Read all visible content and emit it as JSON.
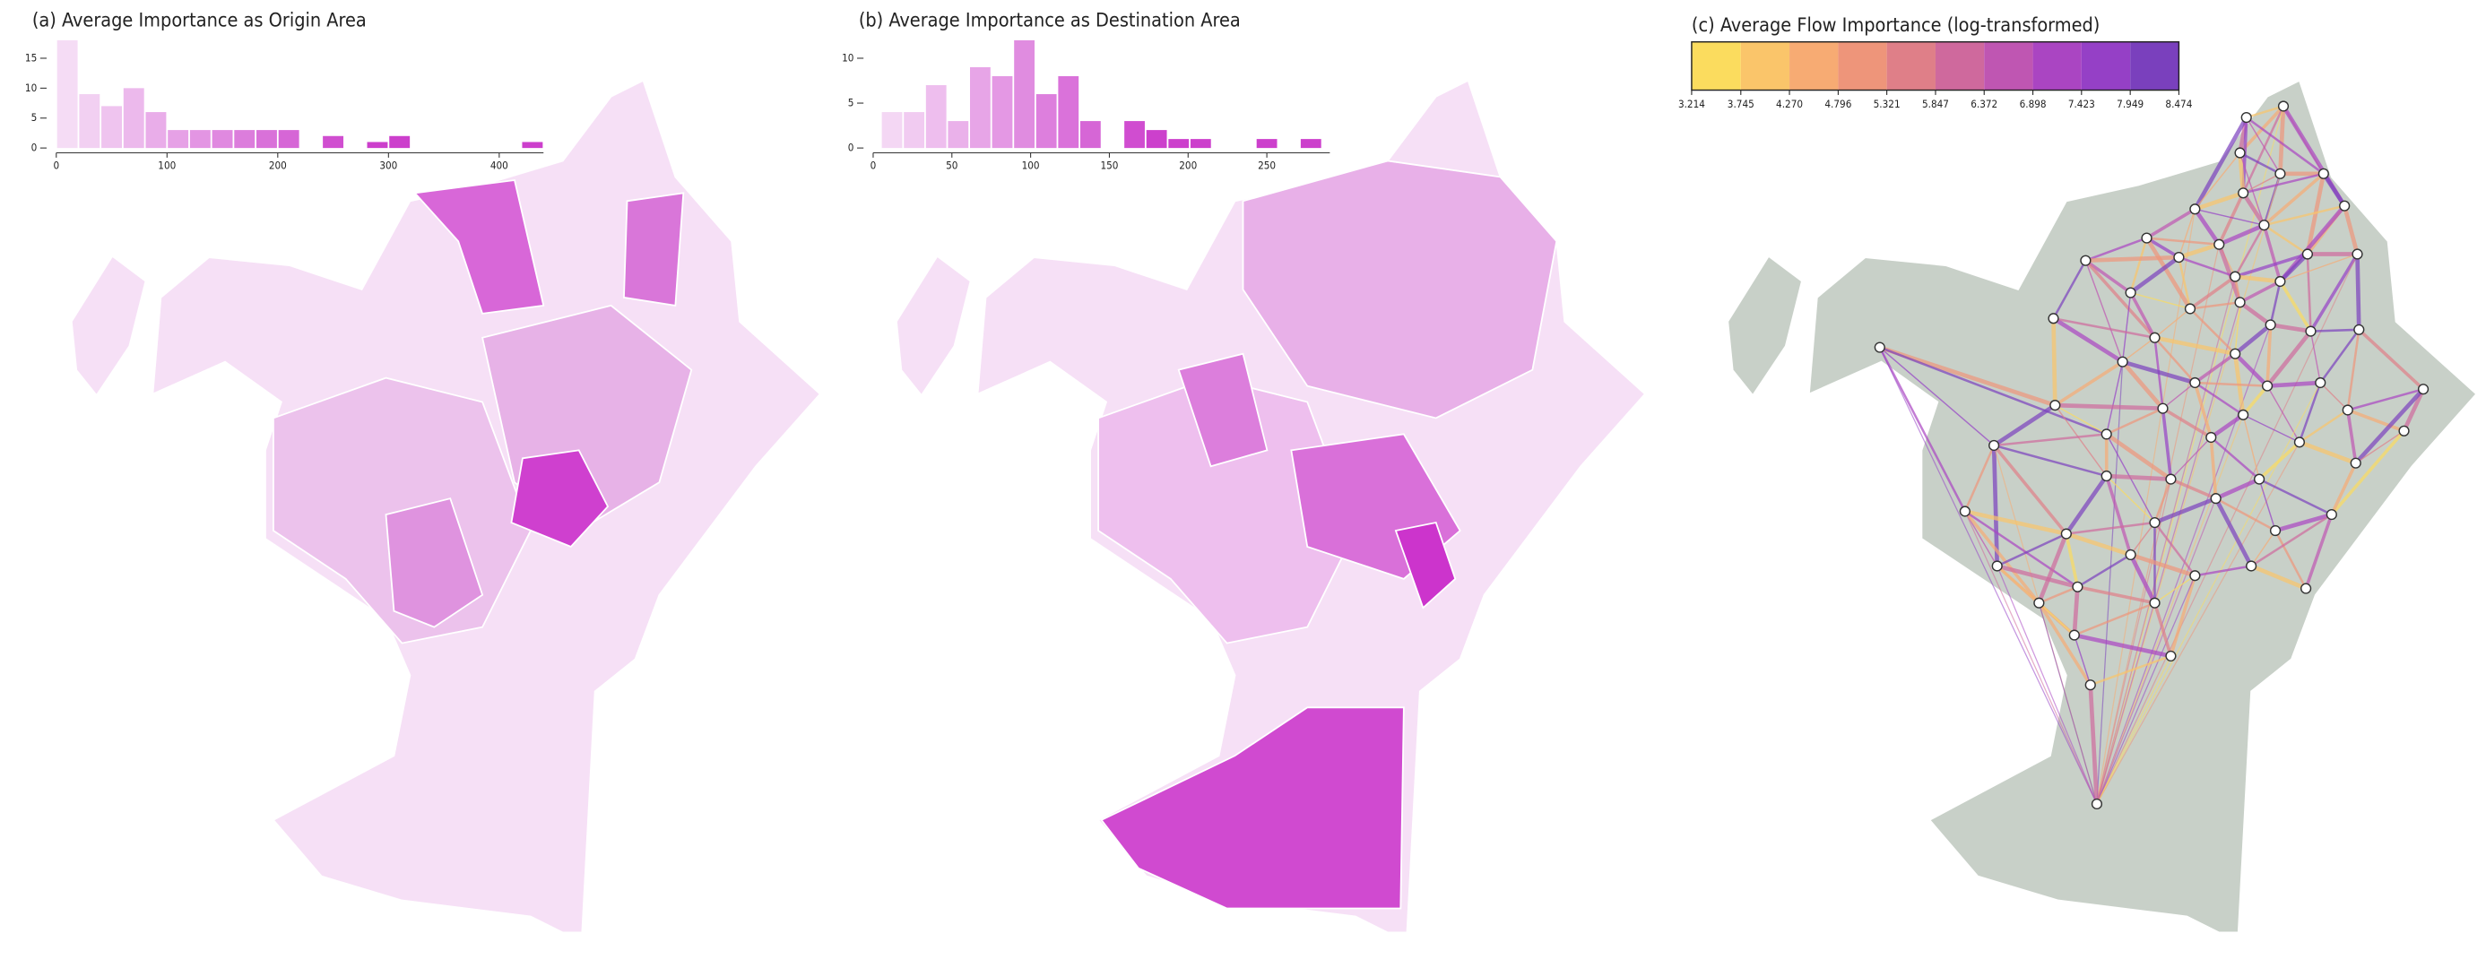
{
  "chart_data": [
    {
      "type": "histogram",
      "title": "(a) Average Importance as Origin Area",
      "bins": [
        0,
        20,
        40,
        60,
        80,
        100,
        120,
        140,
        160,
        180,
        200,
        220,
        240,
        260,
        280,
        300,
        320,
        340,
        360,
        380,
        400,
        420,
        440
      ],
      "values": [
        18,
        9,
        7,
        10,
        6,
        3,
        3,
        3,
        3,
        3,
        3,
        0,
        2,
        0,
        1,
        2,
        0,
        0,
        0,
        0,
        0,
        1
      ],
      "xlim": [
        0,
        440
      ],
      "ylim": [
        0,
        18
      ],
      "xticks": [
        0,
        100,
        200,
        300,
        400
      ],
      "yticks": [
        0,
        5,
        10,
        15
      ],
      "color_range": [
        "#f7e2f7",
        "#cc3fcc"
      ]
    },
    {
      "type": "histogram",
      "title": "(b) Average Importance as Destination Area",
      "bins": [
        5,
        19,
        33,
        47,
        61,
        75,
        89,
        103,
        117,
        131,
        145,
        159,
        173,
        187,
        201,
        215,
        229,
        243,
        257,
        271,
        285
      ],
      "values": [
        4,
        4,
        7,
        3,
        9,
        8,
        12,
        6,
        8,
        3,
        0,
        3,
        2,
        1,
        1,
        0,
        0,
        1,
        0,
        1
      ],
      "xlim": [
        0,
        290
      ],
      "ylim": [
        0,
        12
      ],
      "xticks": [
        0,
        50,
        100,
        150,
        200,
        250
      ],
      "yticks": [
        0,
        5,
        10
      ],
      "color_range": [
        "#f7e2f7",
        "#cc3fcc"
      ]
    },
    {
      "type": "colorbar",
      "title": "(c) Average Flow Importance (log-transformed)",
      "xlim": [
        3.214,
        8.474
      ],
      "ticks": [
        3.214,
        3.745,
        {
          "value": 4.27,
          "label": "4.270"
        },
        4.796,
        5.321,
        5.847,
        6.372,
        6.898,
        7.423,
        7.949,
        8.474
      ],
      "colors": [
        "#fbdc5e",
        "#fac56a",
        "#f7ab73",
        "#ee957a",
        "#df7f88",
        "#cf699d",
        "#bf56b2",
        "#aa45c2",
        "#9540c6",
        "#7a40bd"
      ]
    }
  ]
}
